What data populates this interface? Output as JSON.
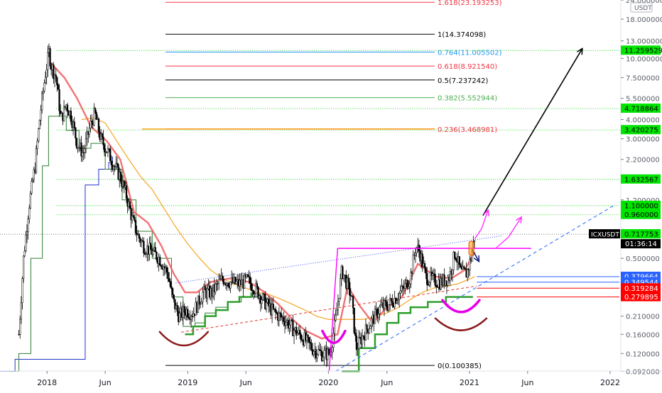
{
  "chart_data": {
    "type": "line",
    "symbol": "ICXUSDT",
    "currency_unit": "USDT",
    "y_scale": "log",
    "ylim": [
      0.0923,
      24.0
    ],
    "xlim": [
      "2017-09-01",
      "2022-01-25"
    ],
    "x_ticks": [
      {
        "label": "2018",
        "date": "2018-01-01"
      },
      {
        "label": "Jun",
        "date": "2018-06-01"
      },
      {
        "label": "2019",
        "date": "2019-01-01"
      },
      {
        "label": "Jun",
        "date": "2019-06-01"
      },
      {
        "label": "2020",
        "date": "2020-01-01"
      },
      {
        "label": "Jun",
        "date": "2020-06-01"
      },
      {
        "label": "2021",
        "date": "2021-01-01"
      },
      {
        "label": "Jun",
        "date": "2021-06-01"
      },
      {
        "label": "2022",
        "date": "2022-01-01"
      }
    ],
    "y_ticks": [
      "24.000000",
      "18.000000",
      "13.000000",
      "10.000000",
      "7.500000",
      "5.500000",
      "4.000000",
      "3.000000",
      "2.200000",
      "1.200000",
      "0.500000",
      "0.210000",
      "0.160000",
      "0.120000",
      "0.092000"
    ],
    "fib_levels": [
      {
        "label": "1.618(23.193253)",
        "value": 23.193253,
        "color": "#f23645"
      },
      {
        "label": "1(14.374098)",
        "value": 14.374098,
        "color": "#000000"
      },
      {
        "label": "0.764(11.005502)",
        "value": 11.005502,
        "color": "#2196f3"
      },
      {
        "label": "0.618(8.921540)",
        "value": 8.92154,
        "color": "#f23645"
      },
      {
        "label": "0.5(7.237242)",
        "value": 7.237242,
        "color": "#000000"
      },
      {
        "label": "0.382(5.552944)",
        "value": 5.552944,
        "color": "#4caf50"
      },
      {
        "label": "0.236(3.468981)",
        "value": 3.468981,
        "color": "#f23645"
      },
      {
        "label": "0(0.100385)",
        "value": 0.100385,
        "color": "#000000"
      }
    ],
    "green_levels": [
      11.259529,
      4.718864,
      3.420275,
      1.632567,
      1.1,
      0.96
    ],
    "price_badges": [
      {
        "label": "11.259529",
        "value": 11.259529,
        "bg": "#00e600",
        "fg": "#000000"
      },
      {
        "label": "4.718864",
        "value": 4.718864,
        "bg": "#00e600",
        "fg": "#000000"
      },
      {
        "label": "3.420275",
        "value": 3.420275,
        "bg": "#00e600",
        "fg": "#000000"
      },
      {
        "label": "1.632567",
        "value": 1.632567,
        "bg": "#00e600",
        "fg": "#000000"
      },
      {
        "label": "1.100000",
        "value": 1.1,
        "bg": "#00e600",
        "fg": "#000000"
      },
      {
        "label": "0.960000",
        "value": 0.96,
        "bg": "#00e600",
        "fg": "#000000"
      },
      {
        "label": "0.717753",
        "value": 0.717753,
        "bg": "#00e600",
        "fg": "#000000"
      },
      {
        "label": "0.379664",
        "value": 0.379664,
        "bg": "#2962ff",
        "fg": "#ffffff"
      },
      {
        "label": "0.349544",
        "value": 0.349544,
        "bg": "#2962ff",
        "fg": "#ffffff"
      },
      {
        "label": "0.319284",
        "value": 0.319284,
        "bg": "#ff0000",
        "fg": "#ffffff"
      },
      {
        "label": "0.279895",
        "value": 0.279895,
        "bg": "#ff0000",
        "fg": "#ffffff"
      }
    ],
    "symbol_badge": {
      "label": "ICXUSDT",
      "value": 0.717753
    },
    "countdown": "01:36:14",
    "current_price": 0.717753,
    "candles_close": [
      [
        "2017-10-20",
        0.16
      ],
      [
        "2017-11-01",
        0.5
      ],
      [
        "2017-11-15",
        1.1
      ],
      [
        "2017-12-01",
        2.0
      ],
      [
        "2017-12-15",
        4.5
      ],
      [
        "2017-12-28",
        8.0
      ],
      [
        "2018-01-06",
        11.0
      ],
      [
        "2018-01-12",
        9.0
      ],
      [
        "2018-01-25",
        7.5
      ],
      [
        "2018-02-06",
        4.0
      ],
      [
        "2018-02-20",
        5.0
      ],
      [
        "2018-03-05",
        4.2
      ],
      [
        "2018-03-20",
        2.8
      ],
      [
        "2018-04-05",
        2.4
      ],
      [
        "2018-04-25",
        3.8
      ],
      [
        "2018-05-05",
        4.4
      ],
      [
        "2018-05-20",
        3.0
      ],
      [
        "2018-06-10",
        2.4
      ],
      [
        "2018-06-25",
        2.0
      ],
      [
        "2018-07-10",
        1.7
      ],
      [
        "2018-07-25",
        1.3
      ],
      [
        "2018-08-10",
        0.9
      ],
      [
        "2018-08-25",
        0.7
      ],
      [
        "2018-09-10",
        0.6
      ],
      [
        "2018-10-01",
        0.55
      ],
      [
        "2018-10-20",
        0.5
      ],
      [
        "2018-11-10",
        0.4
      ],
      [
        "2018-11-25",
        0.26
      ],
      [
        "2018-12-10",
        0.21
      ],
      [
        "2018-12-25",
        0.23
      ],
      [
        "2019-01-15",
        0.22
      ],
      [
        "2019-02-10",
        0.3
      ],
      [
        "2019-03-05",
        0.3
      ],
      [
        "2019-04-01",
        0.37
      ],
      [
        "2019-04-20",
        0.35
      ],
      [
        "2019-05-15",
        0.34
      ],
      [
        "2019-06-05",
        0.36
      ],
      [
        "2019-06-25",
        0.32
      ],
      [
        "2019-07-20",
        0.26
      ],
      [
        "2019-08-15",
        0.22
      ],
      [
        "2019-09-10",
        0.2
      ],
      [
        "2019-10-05",
        0.17
      ],
      [
        "2019-10-30",
        0.15
      ],
      [
        "2019-11-20",
        0.13
      ],
      [
        "2019-12-15",
        0.12
      ],
      [
        "2020-01-05",
        0.12
      ],
      [
        "2020-01-20",
        0.2
      ],
      [
        "2020-02-05",
        0.42
      ],
      [
        "2020-02-15",
        0.36
      ],
      [
        "2020-03-01",
        0.28
      ],
      [
        "2020-03-13",
        0.13
      ],
      [
        "2020-04-01",
        0.16
      ],
      [
        "2020-04-25",
        0.2
      ],
      [
        "2020-05-15",
        0.24
      ],
      [
        "2020-06-05",
        0.25
      ],
      [
        "2020-06-25",
        0.28
      ],
      [
        "2020-07-15",
        0.32
      ],
      [
        "2020-08-01",
        0.38
      ],
      [
        "2020-08-15",
        0.6
      ],
      [
        "2020-08-25",
        0.55
      ],
      [
        "2020-09-10",
        0.38
      ],
      [
        "2020-10-01",
        0.36
      ],
      [
        "2020-10-20",
        0.35
      ],
      [
        "2020-11-10",
        0.38
      ],
      [
        "2020-11-25",
        0.55
      ],
      [
        "2020-12-10",
        0.4
      ],
      [
        "2020-12-25",
        0.4
      ],
      [
        "2021-01-05",
        0.5
      ],
      [
        "2021-01-15",
        0.717753
      ]
    ],
    "indicators": {
      "red_trail": [
        [
          "2018-01-08",
          9.5
        ],
        [
          "2018-02-15",
          7.5
        ],
        [
          "2018-03-20",
          5.5
        ],
        [
          "2018-04-25",
          3.6
        ],
        [
          "2018-06-05",
          2.9
        ],
        [
          "2018-07-10",
          2.2
        ],
        [
          "2018-08-15",
          1.0
        ],
        [
          "2018-09-20",
          0.85
        ],
        [
          "2018-10-25",
          0.6
        ],
        [
          "2018-11-25",
          0.4
        ],
        [
          "2018-12-25",
          0.3
        ],
        [
          "2019-01-25",
          0.3
        ],
        [
          "2019-03-01",
          0.35
        ],
        [
          "2019-04-20",
          0.37
        ],
        [
          "2019-06-10",
          0.35
        ],
        [
          "2019-07-20",
          0.3
        ],
        [
          "2019-08-25",
          0.25
        ],
        [
          "2019-09-30",
          0.2
        ],
        [
          "2019-11-01",
          0.17
        ],
        [
          "2019-12-15",
          0.15
        ],
        [
          "2020-01-25",
          0.16
        ],
        [
          "2020-02-20",
          0.33
        ],
        [
          "2020-03-20",
          0.25
        ],
        [
          "2020-04-25",
          0.19
        ],
        [
          "2020-06-01",
          0.24
        ],
        [
          "2020-07-10",
          0.28
        ],
        [
          "2020-08-20",
          0.46
        ],
        [
          "2020-10-05",
          0.38
        ],
        [
          "2020-11-15",
          0.37
        ],
        [
          "2020-12-20",
          0.42
        ],
        [
          "2021-01-15",
          0.55
        ]
      ],
      "orange_ma": [
        [
          "2018-04-01",
          4.0
        ],
        [
          "2018-05-01",
          4.1
        ],
        [
          "2018-06-01",
          3.8
        ],
        [
          "2018-07-01",
          2.9
        ],
        [
          "2018-08-01",
          2.2
        ],
        [
          "2018-09-01",
          1.7
        ],
        [
          "2018-10-01",
          1.4
        ],
        [
          "2018-11-01",
          1.05
        ],
        [
          "2018-12-01",
          0.8
        ],
        [
          "2019-01-01",
          0.62
        ],
        [
          "2019-02-01",
          0.5
        ],
        [
          "2019-03-01",
          0.42
        ],
        [
          "2019-04-01",
          0.37
        ],
        [
          "2019-05-01",
          0.34
        ],
        [
          "2019-06-01",
          0.32
        ],
        [
          "2019-07-01",
          0.3
        ],
        [
          "2019-08-01",
          0.29
        ],
        [
          "2019-09-01",
          0.27
        ],
        [
          "2019-10-01",
          0.25
        ],
        [
          "2019-11-01",
          0.23
        ],
        [
          "2019-12-01",
          0.21
        ],
        [
          "2020-01-01",
          0.2
        ],
        [
          "2020-02-01",
          0.2
        ],
        [
          "2020-03-01",
          0.2
        ],
        [
          "2020-04-01",
          0.2
        ],
        [
          "2020-05-01",
          0.21
        ],
        [
          "2020-06-01",
          0.22
        ],
        [
          "2020-07-01",
          0.24
        ],
        [
          "2020-08-01",
          0.27
        ],
        [
          "2020-09-01",
          0.3
        ],
        [
          "2020-10-01",
          0.32
        ],
        [
          "2020-11-01",
          0.33
        ],
        [
          "2020-12-01",
          0.34
        ],
        [
          "2021-01-15",
          0.38
        ]
      ],
      "green_trail": [
        [
          "2017-09-25",
          0.092
        ],
        [
          "2017-10-20",
          0.12
        ],
        [
          "2017-11-20",
          0.5
        ],
        [
          "2017-12-20",
          2.0
        ],
        [
          "2018-01-05",
          4.2
        ],
        [
          "2018-02-20",
          3.4
        ],
        [
          "2018-03-25",
          2.6
        ],
        [
          "2018-04-25",
          2.8
        ],
        [
          "2018-06-01",
          1.9
        ],
        [
          "2018-07-15",
          1.2
        ],
        [
          "2018-08-20",
          0.75
        ],
        [
          "2018-10-01",
          0.5
        ],
        [
          "2018-11-20",
          0.28
        ],
        [
          "2018-12-20",
          0.18
        ],
        [
          "2019-01-20",
          0.19
        ],
        [
          "2019-02-15",
          0.22
        ],
        [
          "2019-03-15",
          0.24
        ],
        [
          "2019-04-15",
          0.26
        ],
        [
          "2019-05-20",
          0.28
        ],
        [
          "2019-07-01",
          0.3
        ]
      ],
      "green_thick": [
        [
          "2018-12-25",
          0.16
        ],
        [
          "2019-01-15",
          0.18
        ],
        [
          "2019-02-15",
          0.21
        ],
        [
          "2019-03-15",
          0.23
        ],
        [
          "2019-04-15",
          0.26
        ],
        [
          "2019-05-15",
          0.28
        ],
        [
          "2019-06-15",
          0.3
        ]
      ],
      "green_thick2": [
        [
          "2020-02-05",
          0.092
        ],
        [
          "2020-03-20",
          0.13
        ],
        [
          "2020-05-01",
          0.16
        ],
        [
          "2020-06-01",
          0.19
        ],
        [
          "2020-07-01",
          0.22
        ],
        [
          "2020-08-01",
          0.24
        ],
        [
          "2020-09-15",
          0.26
        ],
        [
          "2020-11-01",
          0.28
        ],
        [
          "2021-01-10",
          0.28
        ]
      ],
      "blue_trail": [
        [
          "2017-09-01",
          0.092
        ],
        [
          "2017-10-10",
          0.11
        ],
        [
          "2018-04-01",
          0.11
        ],
        [
          "2018-04-10",
          1.5
        ],
        [
          "2018-05-15",
          1.9
        ],
        [
          "2018-06-10",
          2.1
        ],
        [
          "2018-06-20",
          2.3
        ]
      ]
    },
    "annotations": {
      "rising_trendline": {
        "from": [
          "2018-12-01",
          0.345
        ],
        "to": [
          "2021-03-25",
          0.7
        ]
      },
      "dashed_blue_trendline": {
        "from": [
          "2020-01-20",
          0.092
        ],
        "to": [
          "2022-01-15",
          1.12
        ]
      },
      "red_dashed_trendline": {
        "from": [
          "2018-12-15",
          0.165
        ],
        "to": [
          "2021-01-20",
          0.33
        ]
      },
      "magenta_neckline": {
        "from": [
          "2020-01-25",
          0.58
        ],
        "to": [
          "2021-06-10",
          0.58
        ]
      },
      "magenta_spike": {
        "from": [
          "2020-01-03",
          0.092
        ],
        "to": [
          "2020-01-25",
          0.58
        ]
      },
      "target_arrow": {
        "from": [
          "2021-02-05",
          0.95
        ],
        "to": [
          "2021-10-20",
          11.5
        ]
      },
      "magenta_arrows": [
        {
          "from": [
            "2021-01-15",
            0.67
          ],
          "to": [
            "2021-02-18",
            1.02
          ]
        },
        {
          "from": [
            "2021-03-10",
            0.58
          ],
          "to": [
            "2021-05-15",
            0.92
          ]
        }
      ],
      "navy_arrow": {
        "from": [
          "2021-01-10",
          0.56
        ],
        "to": [
          "2021-01-25",
          0.48
        ]
      },
      "price_marker_date": "2021-01-05",
      "support_lines": [
        {
          "value": 0.379664,
          "color": "#2962ff",
          "from": "2021-01-20"
        },
        {
          "value": 0.349544,
          "color": "#2962ff",
          "from": "2021-01-20"
        },
        {
          "value": 0.319284,
          "color": "#ff0000",
          "from": "2021-01-20"
        },
        {
          "value": 0.279895,
          "color": "#ff0000",
          "from": "2021-01-20"
        }
      ],
      "arcs": [
        {
          "center": "2018-12-22",
          "value": 0.14,
          "color": "#8b1a1a"
        },
        {
          "center": "2020-01-15",
          "value": 0.145,
          "color": "#e600e6"
        },
        {
          "center": "2020-12-10",
          "value": 0.23,
          "color": "#e600e6"
        },
        {
          "center": "2020-12-10",
          "value": 0.175,
          "color": "#8b1a1a"
        }
      ]
    }
  }
}
